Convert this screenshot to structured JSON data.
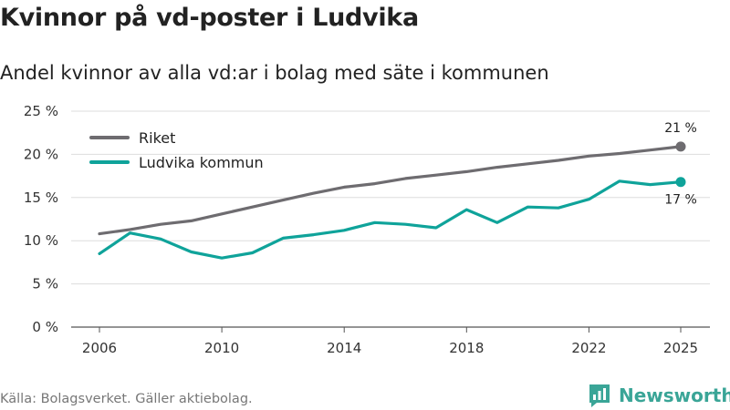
{
  "header": {
    "title": "Kvinnor på vd-poster i Ludvika",
    "subtitle": "Andel kvinnor av alla vd:ar i bolag med säte i kommunen"
  },
  "footer": {
    "source": "Källa: Bolagsverket. Gäller aktiebolag.",
    "brand": "Newsworthy"
  },
  "colors": {
    "riket": "#6e6c70",
    "ludvika": "#0fa39a",
    "grid": "#dddddd",
    "brand": "#3aa597"
  },
  "chart_data": {
    "type": "line",
    "title": "Kvinnor på vd-poster i Ludvika",
    "subtitle": "Andel kvinnor av alla vd:ar i bolag med säte i kommunen",
    "xlabel": "",
    "ylabel": "",
    "xlim": [
      2006,
      2025
    ],
    "ylim": [
      0,
      25
    ],
    "grid": true,
    "legend_position": "top-left",
    "x_ticks": [
      2006,
      2010,
      2014,
      2018,
      2022,
      2025
    ],
    "y_ticks": [
      0,
      5,
      10,
      15,
      20,
      25
    ],
    "y_tick_labels": [
      "0 %",
      "5 %",
      "10 %",
      "15 %",
      "20 %",
      "25 %"
    ],
    "x": [
      2006,
      2007,
      2008,
      2009,
      2010,
      2011,
      2012,
      2013,
      2014,
      2015,
      2016,
      2017,
      2018,
      2019,
      2020,
      2021,
      2022,
      2023,
      2024,
      2025
    ],
    "series": [
      {
        "name": "Riket",
        "color": "#6e6c70",
        "values": [
          10.8,
          11.3,
          11.9,
          12.3,
          13.1,
          13.9,
          14.7,
          15.5,
          16.2,
          16.6,
          17.2,
          17.6,
          18.0,
          18.5,
          18.9,
          19.3,
          19.8,
          20.1,
          20.5,
          20.9
        ],
        "end_label": "21 %"
      },
      {
        "name": "Ludvika kommun",
        "color": "#0fa39a",
        "values": [
          8.5,
          10.9,
          10.2,
          8.7,
          8.0,
          8.6,
          10.3,
          10.7,
          11.2,
          12.1,
          11.9,
          11.5,
          13.6,
          12.1,
          13.9,
          13.8,
          14.8,
          16.9,
          16.5,
          16.8
        ],
        "end_label": "17 %"
      }
    ]
  }
}
